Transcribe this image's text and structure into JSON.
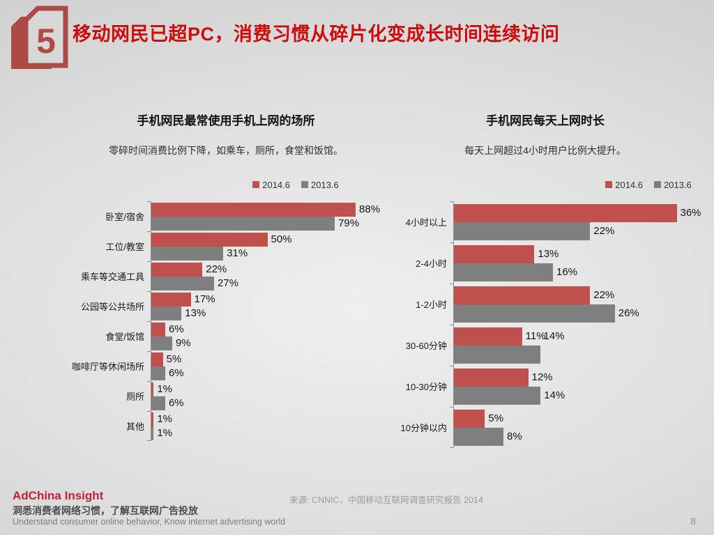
{
  "header": {
    "badge_number": "5",
    "title": "移动网民已超PC，消费习惯从碎片化变成长时间连续访问"
  },
  "colors": {
    "series_red": "#c0504d",
    "series_gray": "#7f7f7f",
    "title_red": "#cf0a0a",
    "brand_red": "#c41f39",
    "badge_red": "#ac4a45"
  },
  "chart_data": [
    {
      "type": "bar",
      "orientation": "horizontal",
      "title": "手机网民最常使用手机上网的场所",
      "subtitle": "零碎时间消费比例下降，如乘车，厕所，食堂和饭馆。",
      "legend": [
        "2014.6",
        "2013.6"
      ],
      "legend_position": "top",
      "grid": false,
      "xlim": [
        0,
        100
      ],
      "value_suffix": "%",
      "categories": [
        "卧室/宿舍",
        "工位/教室",
        "乘车等交通工具",
        "公园等公共场所",
        "食堂/饭馆",
        "咖啡厅等休闲场所",
        "厕所",
        "其他"
      ],
      "series": [
        {
          "name": "2014.6",
          "color": "#c0504d",
          "values": [
            88,
            50,
            22,
            17,
            6,
            5,
            1,
            1
          ]
        },
        {
          "name": "2013.6",
          "color": "#7f7f7f",
          "values": [
            79,
            31,
            27,
            13,
            9,
            6,
            6,
            1
          ]
        }
      ]
    },
    {
      "type": "bar",
      "orientation": "horizontal",
      "title": "手机网民每天上网时长",
      "subtitle": "每天上网超过4小时用户比例大提升。",
      "legend": [
        "2014.6",
        "2013.6"
      ],
      "legend_position": "top",
      "grid": false,
      "xlim": [
        0,
        40
      ],
      "value_suffix": "%",
      "overlap_gray_label_rows": [
        3
      ],
      "categories": [
        "4小时以上",
        "2-4小时",
        "1-2小时",
        "30-60分钟",
        "10-30分钟",
        "10分钟以内"
      ],
      "series": [
        {
          "name": "2014.6",
          "color": "#c0504d",
          "values": [
            36,
            13,
            22,
            11,
            12,
            5
          ]
        },
        {
          "name": "2013.6",
          "color": "#7f7f7f",
          "values": [
            22,
            16,
            26,
            14,
            14,
            8
          ]
        }
      ]
    }
  ],
  "footer": {
    "brand": "AdChina Insight",
    "tagline_zh": "洞悉消费者网络习惯，了解互联网广告投放",
    "tagline_en": "Understand consumer online behavior, Know internet advertising world",
    "source": "来源: CNNIC，中国移动互联网调查研究报告 2014",
    "page_number": "8"
  }
}
